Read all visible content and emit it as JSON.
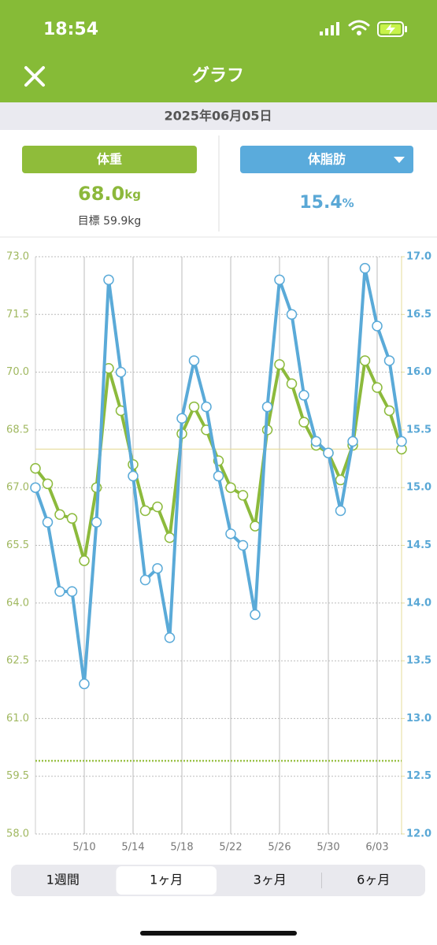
{
  "status_bar": {
    "time": "18:54"
  },
  "header": {
    "title": "グラフ"
  },
  "date": "2025年06月05日",
  "weight": {
    "value": "68.0",
    "unit": "kg",
    "goal": "目標 59.9kg"
  },
  "body_fat": {
    "value": "15.4",
    "unit": "%"
  },
  "chart_data": {
    "type": "line",
    "categories": [
      null,
      null,
      null,
      null,
      "5/10",
      null,
      null,
      null,
      "5/14",
      null,
      null,
      null,
      "5/18",
      null,
      null,
      null,
      "5/22",
      null,
      null,
      null,
      "5/26",
      null,
      null,
      null,
      "5/30",
      null,
      null,
      null,
      "6/03",
      null,
      null
    ],
    "series": [
      {
        "name": "体重",
        "color": "#8cba3c",
        "axis": "y",
        "values": [
          67.5,
          67.1,
          66.3,
          66.2,
          65.1,
          67.0,
          70.1,
          69.0,
          67.6,
          66.4,
          66.5,
          65.7,
          68.4,
          69.1,
          68.5,
          67.7,
          67.0,
          66.8,
          66.0,
          68.5,
          70.2,
          69.7,
          68.7,
          68.1,
          67.9,
          67.2,
          68.1,
          70.3,
          69.6,
          69.0,
          68.0
        ]
      },
      {
        "name": "体脂肪",
        "color": "#5aaad8",
        "axis": "y2",
        "values": [
          15.0,
          14.7,
          14.1,
          14.1,
          13.3,
          14.7,
          16.8,
          16.0,
          15.1,
          14.2,
          14.3,
          13.7,
          15.6,
          16.1,
          15.7,
          15.1,
          14.6,
          14.5,
          13.9,
          15.7,
          16.8,
          16.5,
          15.8,
          15.4,
          15.3,
          14.8,
          15.4,
          16.9,
          16.4,
          16.1,
          15.4
        ]
      }
    ],
    "ylim": [
      58,
      73
    ],
    "yticks": [
      {
        "value": 58,
        "label": "58.0"
      },
      {
        "value": 59.5,
        "label": "59.5"
      },
      {
        "value": 61,
        "label": "61.0"
      },
      {
        "value": 62.5,
        "label": "62.5"
      },
      {
        "value": 64,
        "label": "64.0"
      },
      {
        "value": 65.5,
        "label": "65.5"
      },
      {
        "value": 67,
        "label": "67.0"
      },
      {
        "value": 68.5,
        "label": "68.5"
      },
      {
        "value": 70,
        "label": "70.0"
      },
      {
        "value": 71.5,
        "label": "71.5"
      },
      {
        "value": 73,
        "label": "73.0"
      }
    ],
    "y2lim": [
      12,
      17
    ],
    "y2ticks": [
      {
        "value": 12,
        "label": "12.0"
      },
      {
        "value": 12.5,
        "label": "12.5"
      },
      {
        "value": 13,
        "label": "13.0"
      },
      {
        "value": 13.5,
        "label": "13.5"
      },
      {
        "value": 14,
        "label": "14.0"
      },
      {
        "value": 14.5,
        "label": "14.5"
      },
      {
        "value": 15,
        "label": "15.0"
      },
      {
        "value": 15.5,
        "label": "15.5"
      },
      {
        "value": 16,
        "label": "16.0"
      },
      {
        "value": 16.5,
        "label": "16.5"
      },
      {
        "value": 17,
        "label": "17.0"
      }
    ],
    "reference_lines": [
      {
        "value": 68.0,
        "color": "#e6dc9a",
        "dashed": false
      },
      {
        "value": 59.9,
        "color": "#9cc24a",
        "dashed": true
      }
    ],
    "grid": true
  },
  "tabs": {
    "labels": [
      "1週間",
      "1ヶ月",
      "3ヶ月",
      "6ヶ月"
    ],
    "selected": 1
  }
}
